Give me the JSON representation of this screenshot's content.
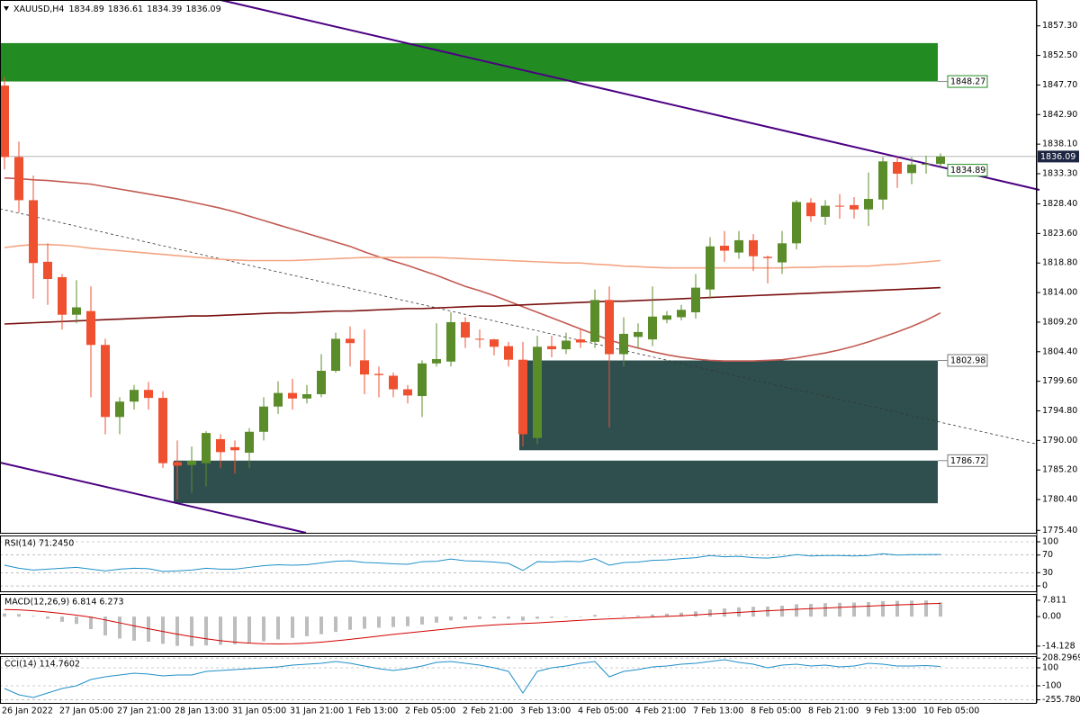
{
  "chart_data": {
    "type": "candlestick",
    "symbol": "XAUUSD,H4",
    "up_color": "#5b8c2a",
    "down_color": "#ef5030",
    "ylim": [
      1775.0,
      1861.5
    ],
    "yticks": [
      {
        "value": 1857.3,
        "label": "1857.30"
      },
      {
        "value": 1852.5,
        "label": "1852.50"
      },
      {
        "value": 1847.7,
        "label": "1847.70"
      },
      {
        "value": 1842.9,
        "label": "1842.90"
      },
      {
        "value": 1838.1,
        "label": "1838.10"
      },
      {
        "value": 1833.3,
        "label": "1833.30"
      },
      {
        "value": 1828.4,
        "label": "1828.40"
      },
      {
        "value": 1823.6,
        "label": "1823.60"
      },
      {
        "value": 1818.8,
        "label": "1818.80"
      },
      {
        "value": 1814.0,
        "label": "1814.00"
      },
      {
        "value": 1809.2,
        "label": "1809.20"
      },
      {
        "value": 1804.4,
        "label": "1804.40"
      },
      {
        "value": 1799.6,
        "label": "1799.60"
      },
      {
        "value": 1794.8,
        "label": "1794.80"
      },
      {
        "value": 1790.0,
        "label": "1790.00"
      },
      {
        "value": 1785.2,
        "label": "1785.20"
      },
      {
        "value": 1780.4,
        "label": "1780.40"
      },
      {
        "value": 1775.4,
        "label": "1775.40"
      }
    ],
    "categories": [
      "26 Jan 2022",
      null,
      null,
      null,
      "27 Jan 05:00",
      null,
      null,
      null,
      "27 Jan 21:00",
      null,
      null,
      null,
      "28 Jan 13:00",
      null,
      null,
      null,
      "31 Jan 05:00",
      null,
      null,
      null,
      "31 Jan 21:00",
      null,
      null,
      null,
      "1 Feb 13:00",
      null,
      null,
      null,
      "2 Feb 05:00",
      null,
      null,
      null,
      "2 Feb 21:00",
      null,
      null,
      null,
      "3 Feb 13:00",
      null,
      null,
      null,
      "4 Feb 05:00",
      null,
      null,
      null,
      "4 Feb 21:00",
      null,
      null,
      null,
      "7 Feb 13:00",
      null,
      null,
      null,
      "8 Feb 05:00",
      null,
      null,
      null,
      "8 Feb 21:00",
      null,
      null,
      null,
      "9 Feb 13:00",
      null,
      null,
      null,
      "10 Feb 05:00",
      null
    ],
    "open": [
      1847.6,
      1836.0,
      1829.0,
      1819.0,
      1816.5,
      1810.4,
      1811.0,
      1805.5,
      1793.8,
      1796.3,
      1798.2,
      1796.9,
      1786.5,
      1786.0,
      1786.3,
      1790.2,
      1788.9,
      1788.0,
      1791.4,
      1795.5,
      1797.7,
      1796.8,
      1797.5,
      1801.3,
      1806.5,
      1803.0,
      1800.8,
      1800.5,
      1798.3,
      1797.2,
      1802.5,
      1802.8,
      1809.2,
      1806.5,
      1806.4,
      1805.3,
      1803.1,
      1790.4,
      1805.3,
      1804.8,
      1806.4,
      1806.0,
      1812.8,
      1804.0,
      1806.8,
      1806.4,
      1809.6,
      1810.0,
      1810.8,
      1814.5,
      1821.6,
      1820.5,
      1822.5,
      1819.8,
      1818.9,
      1822.0,
      1828.6,
      1826.3,
      1828.1,
      1828.2,
      1827.5,
      1829.1,
      1835.2,
      1833.4,
      1834.8,
      1834.89
    ],
    "high": [
      1849.0,
      1838.5,
      1833.0,
      1822.0,
      1817.0,
      1816.0,
      1815.0,
      1806.5,
      1797.0,
      1799.0,
      1799.5,
      1798.0,
      1790.0,
      1789.0,
      1791.5,
      1791.0,
      1790.0,
      1792.0,
      1797.0,
      1799.6,
      1800.0,
      1799.0,
      1804.0,
      1807.5,
      1808.5,
      1808.0,
      1802.0,
      1801.0,
      1799.0,
      1803.0,
      1809.0,
      1810.8,
      1810.0,
      1808.0,
      1806.5,
      1806.0,
      1806.0,
      1807.0,
      1807.0,
      1807.5,
      1808.0,
      1814.5,
      1815.0,
      1810.0,
      1809.0,
      1815.0,
      1811.0,
      1812.0,
      1817.0,
      1823.0,
      1824.0,
      1824.0,
      1823.5,
      1820.0,
      1824.0,
      1829.0,
      1829.3,
      1829.0,
      1830.0,
      1829.5,
      1833.5,
      1836.0,
      1836.0,
      1836.0,
      1836.2,
      1836.61
    ],
    "low": [
      1834.0,
      1827.0,
      1813.0,
      1812.0,
      1808.0,
      1809.0,
      1797.0,
      1791.0,
      1791.0,
      1795.0,
      1795.0,
      1785.5,
      1780.4,
      1781.5,
      1782.5,
      1785.5,
      1784.6,
      1785.5,
      1790.0,
      1794.3,
      1795.0,
      1796.0,
      1797.0,
      1801.0,
      1802.0,
      1797.5,
      1797.0,
      1797.0,
      1796.0,
      1793.8,
      1802.0,
      1802.0,
      1805.0,
      1805.0,
      1803.8,
      1802.0,
      1789.0,
      1789.4,
      1803.5,
      1804.0,
      1805.0,
      1805.0,
      1792.1,
      1802.0,
      1805.0,
      1805.3,
      1809.0,
      1809.5,
      1809.8,
      1813.0,
      1819.0,
      1819.5,
      1817.5,
      1815.5,
      1817.0,
      1821.0,
      1825.5,
      1825.0,
      1826.0,
      1826.0,
      1824.8,
      1827.5,
      1831.0,
      1831.6,
      1833.3,
      1834.39
    ],
    "close": [
      1836.0,
      1829.0,
      1818.8,
      1816.2,
      1810.4,
      1811.6,
      1805.5,
      1793.8,
      1796.3,
      1798.2,
      1796.9,
      1786.3,
      1785.9,
      1786.7,
      1791.2,
      1788.1,
      1788.4,
      1791.4,
      1795.5,
      1797.7,
      1796.8,
      1797.5,
      1801.3,
      1806.5,
      1805.8,
      1800.7,
      1800.6,
      1798.3,
      1797.3,
      1802.5,
      1803.2,
      1809.2,
      1806.7,
      1806.4,
      1805.2,
      1803.1,
      1791.0,
      1805.2,
      1804.8,
      1806.2,
      1805.9,
      1812.8,
      1804.0,
      1807.3,
      1807.6,
      1810.1,
      1810.3,
      1811.2,
      1814.8,
      1821.5,
      1820.8,
      1822.5,
      1819.9,
      1819.6,
      1822.0,
      1828.7,
      1826.4,
      1828.1,
      1828.0,
      1827.5,
      1829.2,
      1835.3,
      1833.3,
      1834.8,
      1834.9,
      1836.09
    ],
    "series": [
      {
        "color": "#c25a52",
        "values": [
          1832.6,
          1832.5,
          1832.3,
          1832.2,
          1832.0,
          1831.8,
          1831.6,
          1831.2,
          1830.8,
          1830.4,
          1830.0,
          1829.6,
          1829.2,
          1828.7,
          1828.2,
          1827.7,
          1827.1,
          1826.4,
          1825.7,
          1825.0,
          1824.3,
          1823.6,
          1822.9,
          1822.2,
          1821.5,
          1820.6,
          1819.8,
          1819.1,
          1818.4,
          1817.6,
          1816.8,
          1815.9,
          1815.0,
          1814.3,
          1813.5,
          1812.6,
          1811.7,
          1810.8,
          1809.9,
          1809.0,
          1808.1,
          1807.2,
          1806.3,
          1805.6,
          1805.0,
          1804.4,
          1803.9,
          1803.5,
          1803.2,
          1803.0,
          1802.9,
          1802.9,
          1802.9,
          1803.0,
          1803.1,
          1803.4,
          1803.8,
          1804.2,
          1804.7,
          1805.3,
          1806.0,
          1806.8,
          1807.6,
          1808.5,
          1809.5,
          1810.7
        ]
      },
      {
        "color": "#f4a582",
        "values": [
          1821.3,
          1821.6,
          1821.8,
          1821.8,
          1821.7,
          1821.5,
          1821.2,
          1821.0,
          1820.8,
          1820.6,
          1820.4,
          1820.2,
          1820.0,
          1819.8,
          1819.6,
          1819.4,
          1819.3,
          1819.2,
          1819.2,
          1819.2,
          1819.2,
          1819.3,
          1819.4,
          1819.5,
          1819.6,
          1819.7,
          1819.7,
          1819.7,
          1819.7,
          1819.7,
          1819.7,
          1819.6,
          1819.5,
          1819.4,
          1819.3,
          1819.2,
          1819.1,
          1819.0,
          1818.9,
          1818.8,
          1818.8,
          1818.6,
          1818.5,
          1818.3,
          1818.2,
          1818.1,
          1818.0,
          1818.0,
          1818.0,
          1818.0,
          1818.0,
          1818.0,
          1818.0,
          1818.0,
          1818.0,
          1818.1,
          1818.1,
          1818.2,
          1818.2,
          1818.3,
          1818.3,
          1818.5,
          1818.6,
          1818.8,
          1819.0,
          1819.2
        ]
      },
      {
        "color": "#7a0f0f",
        "values": [
          1808.9,
          1809.0,
          1809.1,
          1809.2,
          1809.3,
          1809.4,
          1809.5,
          1809.6,
          1809.7,
          1809.8,
          1809.9,
          1810.0,
          1810.1,
          1810.2,
          1810.2,
          1810.3,
          1810.4,
          1810.5,
          1810.6,
          1810.7,
          1810.7,
          1810.8,
          1810.9,
          1811.0,
          1811.0,
          1811.1,
          1811.2,
          1811.3,
          1811.4,
          1811.4,
          1811.5,
          1811.6,
          1811.7,
          1811.8,
          1811.8,
          1811.9,
          1812.0,
          1812.1,
          1812.2,
          1812.3,
          1812.4,
          1812.5,
          1812.6,
          1812.6,
          1812.7,
          1812.8,
          1812.9,
          1813.0,
          1813.1,
          1813.2,
          1813.3,
          1813.4,
          1813.5,
          1813.6,
          1813.7,
          1813.8,
          1813.9,
          1814.0,
          1814.1,
          1814.2,
          1814.3,
          1814.4,
          1814.5,
          1814.6,
          1814.7,
          1814.8
        ]
      }
    ],
    "zones": [
      {
        "low": 1848.27,
        "high": 1854.5,
        "from": 0,
        "color": "#228b22",
        "labeled": "low"
      },
      {
        "low": 1788.4,
        "high": 1802.98,
        "from": 36,
        "color": "#2f4f4f",
        "labeled": "high"
      },
      {
        "low": 1779.8,
        "high": 1786.72,
        "from": 12,
        "color": "#2f4f4f",
        "labeled": "high"
      }
    ],
    "levels": [
      {
        "value": 1834.89,
        "color": "#228b22"
      }
    ],
    "indicators": [
      {
        "label": "RSI(14) 71.2450",
        "ylim": [
          -12.2,
          114.3
        ],
        "yticks": [
          100,
          70,
          30,
          0
        ],
        "grid": true,
        "series": [
          {
            "type": "line",
            "color": "#1f8fc8",
            "values": [
              47,
              40,
              36,
              38,
              40,
              42,
              38,
              34,
              38,
              40,
              39,
              33,
              34,
              36,
              40,
              38,
              38,
              42,
              46,
              48,
              47,
              48,
              52,
              56,
              57,
              53,
              52,
              50,
              49,
              55,
              56,
              61,
              57,
              56,
              54,
              51,
              35,
              55,
              54,
              56,
              55,
              62,
              47,
              53,
              54,
              58,
              59,
              62,
              64,
              69,
              66,
              67,
              64,
              63,
              66,
              71,
              68,
              69,
              69,
              68,
              69,
              73,
              70,
              71,
              71,
              71.245
            ]
          }
        ]
      },
      {
        "label": "MACD(12,26,9) 6.814 6.273",
        "ylim": [
          -17.6,
          10.8
        ],
        "yticks": [
          7.811,
          {
            "value": 0,
            "label": "0.00"
          },
          -14.128
        ],
        "grid": false,
        "series": [
          {
            "type": "bar",
            "color": "#bdbdbd",
            "values": [
              1.5,
              1.2,
              0.3,
              -1.0,
              -2.5,
              -3.5,
              -6.0,
              -9.0,
              -10.5,
              -11.5,
              -12.0,
              -13.0,
              -14.0,
              -14.1,
              -13.8,
              -13.5,
              -13.2,
              -12.6,
              -11.8,
              -10.9,
              -10.2,
              -9.4,
              -8.4,
              -7.3,
              -6.3,
              -5.8,
              -5.3,
              -5.0,
              -4.6,
              -3.8,
              -2.9,
              -1.8,
              -1.4,
              -1.1,
              -0.9,
              -1.0,
              -2.0,
              -1.0,
              -0.6,
              -0.3,
              0.0,
              0.8,
              0.2,
              0.3,
              0.5,
              1.0,
              1.4,
              1.9,
              2.5,
              3.4,
              3.9,
              4.4,
              4.7,
              4.8,
              5.2,
              5.9,
              6.1,
              6.4,
              6.6,
              6.7,
              6.9,
              7.4,
              7.5,
              7.6,
              7.7,
              6.814
            ]
          },
          {
            "type": "line",
            "color": "#d40000",
            "values": [
              3.4,
              3.2,
              2.8,
              2.2,
              1.5,
              0.7,
              -0.3,
              -1.6,
              -3.0,
              -4.4,
              -5.8,
              -7.1,
              -8.4,
              -9.6,
              -10.6,
              -11.5,
              -12.2,
              -12.7,
              -13.0,
              -13.1,
              -13.0,
              -12.7,
              -12.2,
              -11.6,
              -10.9,
              -10.1,
              -9.3,
              -8.5,
              -7.8,
              -7.1,
              -6.4,
              -5.7,
              -5.0,
              -4.5,
              -4.0,
              -3.6,
              -3.3,
              -3.0,
              -2.6,
              -2.2,
              -1.8,
              -1.4,
              -1.1,
              -0.8,
              -0.5,
              -0.2,
              0.1,
              0.4,
              0.8,
              1.2,
              1.6,
              2.0,
              2.4,
              2.8,
              3.1,
              3.5,
              3.8,
              4.1,
              4.4,
              4.7,
              5.0,
              5.3,
              5.6,
              5.8,
              6.1,
              6.273
            ]
          }
        ]
      },
      {
        "label": "CCI(14) 114.7602",
        "ylim": [
          -290,
          230
        ],
        "yticks": [
          208.2969,
          100,
          -100,
          -255.7808
        ],
        "grid": true,
        "series": [
          {
            "type": "line",
            "color": "#1f8fc8",
            "values": [
              -130,
              -200,
              -230,
              -180,
              -130,
              -100,
              -30,
              0,
              20,
              40,
              30,
              10,
              20,
              20,
              60,
              70,
              80,
              90,
              100,
              110,
              130,
              140,
              150,
              170,
              150,
              120,
              90,
              70,
              90,
              120,
              160,
              170,
              150,
              130,
              100,
              60,
              -180,
              60,
              100,
              120,
              150,
              170,
              0,
              60,
              80,
              110,
              120,
              140,
              150,
              170,
              190,
              160,
              140,
              100,
              130,
              140,
              120,
              130,
              110,
              120,
              150,
              140,
              120,
              120,
              125,
              114.7602
            ]
          }
        ]
      }
    ]
  }
}
